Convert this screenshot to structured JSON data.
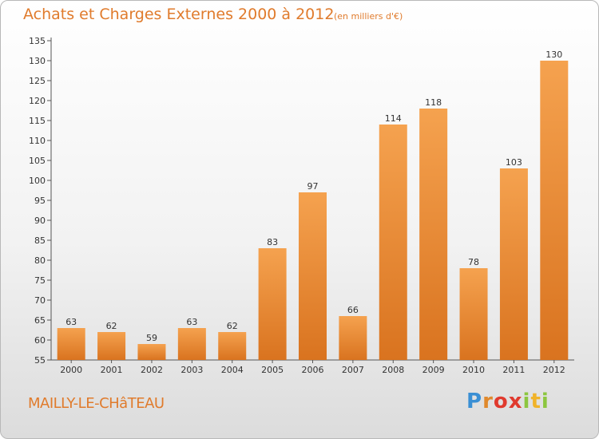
{
  "chart_data": {
    "type": "bar",
    "title": "Achats et Charges Externes 2000 à 2012",
    "subtitle": "(en milliers d'€)",
    "categories": [
      "2000",
      "2001",
      "2002",
      "2003",
      "2004",
      "2005",
      "2006",
      "2007",
      "2008",
      "2009",
      "2010",
      "2011",
      "2012"
    ],
    "values": [
      63,
      62,
      59,
      63,
      62,
      83,
      97,
      66,
      114,
      118,
      78,
      103,
      130
    ],
    "ylim": [
      55,
      135
    ],
    "yticks": [
      55,
      60,
      65,
      70,
      75,
      80,
      85,
      90,
      95,
      100,
      105,
      110,
      115,
      120,
      125,
      130,
      135
    ],
    "grid": false,
    "bar_color_top": "#f5a24f",
    "bar_color_bottom": "#d9731f"
  },
  "footer": {
    "location": "MAILLY-LE-CHâTEAU",
    "brand_letters": [
      "P",
      "r",
      "o",
      "x",
      "i",
      "t",
      "i"
    ],
    "brand_colors": [
      "#3a8fd4",
      "#e0892c",
      "#e03a2e",
      "#e03a2e",
      "#8cc63f",
      "#f0b32a",
      "#8cc63f"
    ]
  }
}
